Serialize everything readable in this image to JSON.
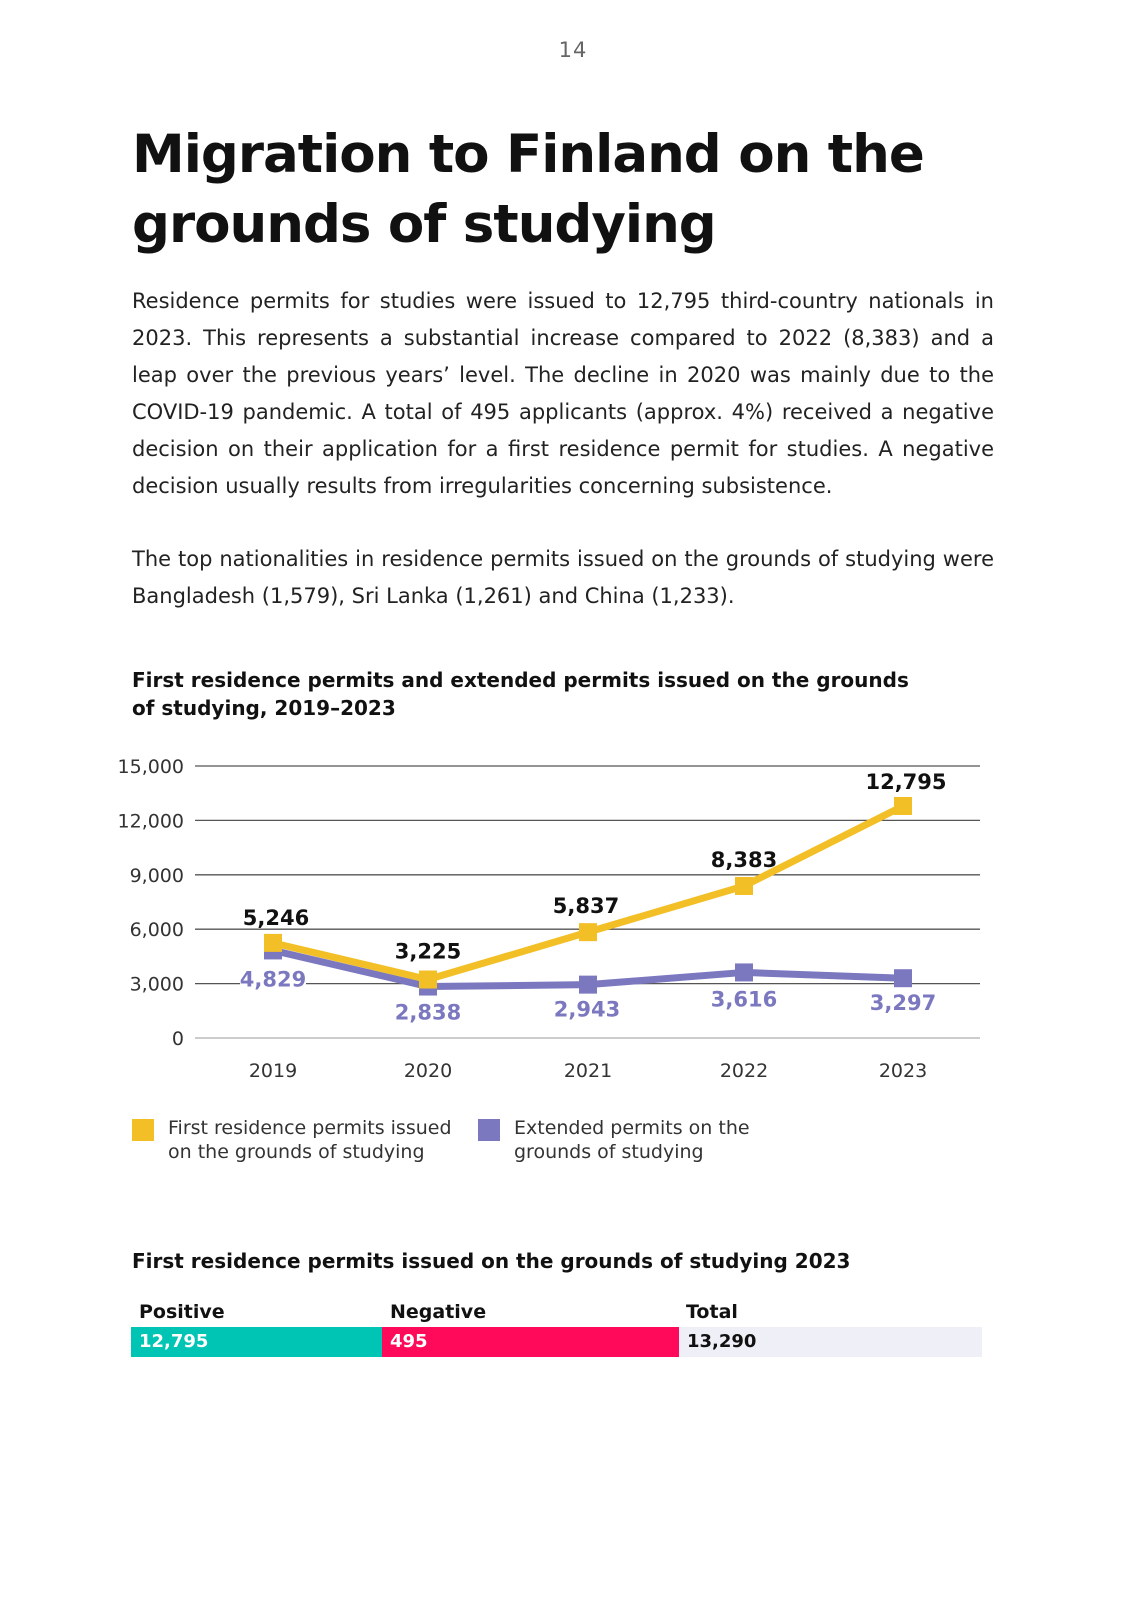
{
  "page_number": "14",
  "title": "Migration to Finland on the grounds of studying",
  "paragraphs": [
    "Residence permits for studies were issued to 12,795 third-country nationals in 2023. This represents a substantial increase compared to 2022 (8,383) and a leap over the previous years’ level. The decline in 2020 was mainly due to the COVID-19 pandemic. A total of 495 applicants (approx. 4%) received a negative decision on their application for a first residence permit for studies. A negative decision usually results from irregularities concerning subsistence.",
    "The top nationalities in residence permits issued on the grounds of studying were Bangladesh (1,579), Sri Lanka (1,261) and China (1,233)."
  ],
  "chart_data": {
    "type": "line",
    "title": "First residence permits and extended permits issued on the grounds of studying, 2019–2023",
    "x": [
      "2019",
      "2020",
      "2021",
      "2022",
      "2023"
    ],
    "ylim": [
      0,
      15000
    ],
    "yticks": [
      0,
      3000,
      6000,
      9000,
      12000,
      15000
    ],
    "ytick_labels": [
      "0",
      "3,000",
      "6,000",
      "9,000",
      "12,000",
      "15,000"
    ],
    "grid": true,
    "legend_position": "bottom",
    "series": [
      {
        "name": "First residence permits issued on the grounds of studying",
        "values": [
          5246,
          3225,
          5837,
          8383,
          12795
        ],
        "labels": [
          "5,246",
          "3,225",
          "5,837",
          "8,383",
          "12,795"
        ],
        "color": "#f2bf26"
      },
      {
        "name": "Extended permits on the grounds of studying",
        "values": [
          4829,
          2838,
          2943,
          3616,
          3297
        ],
        "labels": [
          "4,829",
          "2,838",
          "2,943",
          "3,616",
          "3,297"
        ],
        "color": "#7b78c0"
      }
    ]
  },
  "summary_table": {
    "title": "First residence permits issued on the grounds of studying 2023",
    "positive_label": "Positive",
    "negative_label": "Negative",
    "total_label": "Total",
    "positive_value": "12,795",
    "negative_value": "495",
    "total_value": "13,290",
    "colors": {
      "positive": "#00c4b4",
      "negative": "#ff0a5a",
      "total": "#efeff7"
    }
  }
}
